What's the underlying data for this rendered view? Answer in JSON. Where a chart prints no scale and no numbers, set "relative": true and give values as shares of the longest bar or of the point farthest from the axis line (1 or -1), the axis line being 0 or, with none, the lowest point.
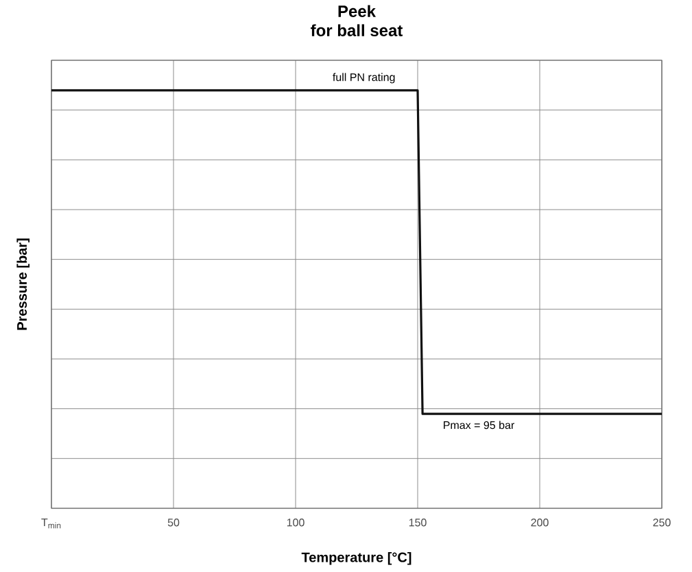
{
  "chart_data": {
    "type": "line",
    "title": "Peek",
    "subtitle": "for ball seat",
    "xlabel": "Temperature [°C]",
    "ylabel": "Pressure [bar]",
    "relative": true,
    "tick_labels": "x",
    "grid": true,
    "line_style": "solid",
    "marker": "none",
    "x": [
      0,
      150,
      152,
      250
    ],
    "series": [
      {
        "color": "#111111",
        "values": [
          1,
          1,
          0.226,
          0.226
        ]
      }
    ],
    "xlim": [
      0,
      250
    ],
    "xticks": [
      {
        "value": 0,
        "label": "T$_{min}$"
      },
      50,
      100,
      150,
      200,
      250
    ],
    "annotations": [
      {
        "text": "full PN rating",
        "x": 128,
        "y": 1
      },
      {
        "text": "Pmax = 95 bar",
        "x": 175,
        "y": 0.226
      }
    ]
  }
}
